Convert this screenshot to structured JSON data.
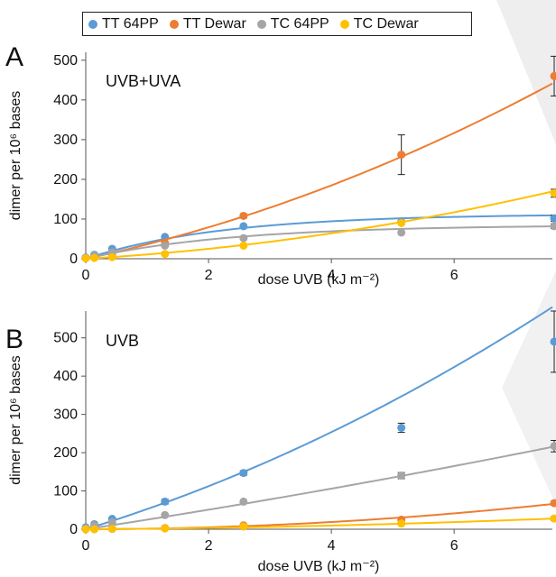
{
  "legend": [
    {
      "name": "TT 64PP",
      "color": "#5B9BD5"
    },
    {
      "name": "TT Dewar",
      "color": "#ED7D31"
    },
    {
      "name": "TC 64PP",
      "color": "#A5A5A5"
    },
    {
      "name": "TC Dewar",
      "color": "#FFC000"
    }
  ],
  "chart_data": [
    {
      "type": "scatter",
      "panel_label": "A",
      "inset_title": "UVB+UVA",
      "xlabel": "dose UVB (kJ m⁻²)",
      "ylabel": "dimer per 10⁶ bases",
      "xlim": [
        0,
        7.6
      ],
      "ylim": [
        0,
        520
      ],
      "xticks": [
        0,
        2,
        4,
        6
      ],
      "yticks": [
        0,
        100,
        200,
        300,
        400,
        500
      ],
      "grid": false,
      "series": [
        {
          "name": "TT 64PP",
          "color": "#5B9BD5",
          "x": [
            0,
            0.14,
            0.43,
            1.29,
            2.57,
            5.14,
            7.71
          ],
          "y": [
            3,
            10,
            25,
            55,
            82,
            93,
            102
          ],
          "err": [
            0,
            0,
            0,
            0,
            0,
            0,
            8
          ],
          "fit": "plateau",
          "fit_params": {
            "max": 113,
            "k": 0.45
          }
        },
        {
          "name": "TT Dewar",
          "color": "#ED7D31",
          "x": [
            0,
            0.14,
            0.43,
            1.29,
            2.57,
            5.14,
            7.71
          ],
          "y": [
            2,
            4,
            10,
            40,
            108,
            262,
            460
          ],
          "err": [
            0,
            0,
            0,
            0,
            5,
            50,
            50
          ],
          "fit": "poly",
          "fit_params": {
            "a": 3.3,
            "b": 33
          }
        },
        {
          "name": "TC 64PP",
          "color": "#A5A5A5",
          "x": [
            0,
            0.14,
            0.43,
            1.29,
            2.57,
            5.14,
            7.71
          ],
          "y": [
            2,
            8,
            16,
            33,
            52,
            66,
            82
          ],
          "err": [
            0,
            0,
            0,
            0,
            0,
            0,
            6
          ],
          "fit": "plateau",
          "fit_params": {
            "max": 85,
            "k": 0.42
          }
        },
        {
          "name": "TC Dewar",
          "color": "#FFC000",
          "x": [
            0,
            0.14,
            0.43,
            1.29,
            2.57,
            5.14,
            7.71
          ],
          "y": [
            1,
            2,
            4,
            12,
            33,
            90,
            165
          ],
          "err": [
            0,
            0,
            0,
            0,
            0,
            0,
            10
          ],
          "fit": "poly",
          "fit_params": {
            "a": 1.75,
            "b": 9
          }
        }
      ]
    },
    {
      "type": "scatter",
      "panel_label": "B",
      "inset_title": "UVB",
      "xlabel": "dose UVB (kJ m⁻²)",
      "ylabel": "dimer per 10⁶ bases",
      "xlim": [
        0,
        7.6
      ],
      "ylim": [
        0,
        570
      ],
      "xticks": [
        0,
        2,
        4,
        6
      ],
      "yticks": [
        0,
        100,
        200,
        300,
        400,
        500
      ],
      "grid": false,
      "series": [
        {
          "name": "TT 64PP",
          "color": "#5B9BD5",
          "x": [
            0,
            0.14,
            0.43,
            1.29,
            2.57,
            5.14,
            7.71
          ],
          "y": [
            5,
            13,
            27,
            72,
            147,
            265,
            490
          ],
          "err": [
            0,
            0,
            0,
            6,
            6,
            12,
            80
          ],
          "fit": "poly",
          "fit_params": {
            "a": 3.6,
            "b": 49
          }
        },
        {
          "name": "TT Dewar",
          "color": "#ED7D31",
          "x": [
            0,
            0.14,
            0.43,
            1.29,
            2.57,
            5.14,
            7.71
          ],
          "y": [
            0,
            0,
            1,
            3,
            10,
            25,
            68
          ],
          "err": [
            0,
            0,
            0,
            0,
            0,
            0,
            5
          ],
          "fit": "poly",
          "fit_params": {
            "a": 1.1,
            "b": 0.3
          }
        },
        {
          "name": "TC 64PP",
          "color": "#A5A5A5",
          "x": [
            0,
            0.14,
            0.43,
            1.29,
            2.57,
            5.14,
            7.71
          ],
          "y": [
            2,
            10,
            18,
            37,
            72,
            140,
            217
          ],
          "err": [
            0,
            0,
            0,
            0,
            0,
            8,
            15
          ],
          "fit": "poly",
          "fit_params": {
            "a": 0.5,
            "b": 24.5
          }
        },
        {
          "name": "TC Dewar",
          "color": "#FFC000",
          "x": [
            0,
            0.14,
            0.43,
            1.29,
            2.57,
            5.14,
            7.71
          ],
          "y": [
            0,
            0,
            1,
            2,
            7,
            15,
            28
          ],
          "err": [
            0,
            0,
            0,
            0,
            0,
            0,
            5
          ],
          "fit": "poly",
          "fit_params": {
            "a": 0.35,
            "b": 1.0
          }
        }
      ]
    }
  ]
}
